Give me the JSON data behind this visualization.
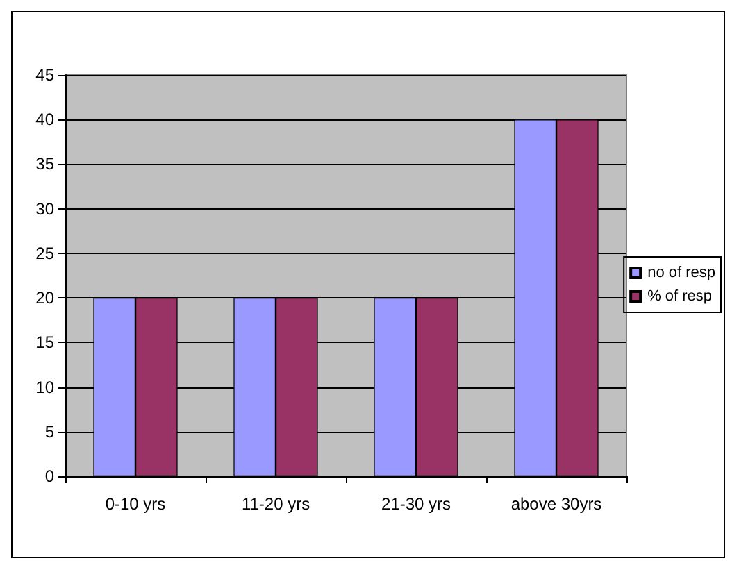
{
  "chart_data": {
    "type": "bar",
    "categories": [
      "0-10 yrs",
      "11-20 yrs",
      "21-30 yrs",
      "above 30yrs"
    ],
    "series": [
      {
        "name": "no of resp",
        "color": "#9999ff",
        "values": [
          20,
          20,
          20,
          40
        ]
      },
      {
        "name": "% of resp",
        "color": "#993366",
        "values": [
          20,
          20,
          20,
          40
        ]
      }
    ],
    "ylim": [
      0,
      45
    ],
    "yticks": [
      0,
      5,
      10,
      15,
      20,
      25,
      30,
      35,
      40,
      45
    ],
    "grid": "y",
    "legend": "right"
  }
}
